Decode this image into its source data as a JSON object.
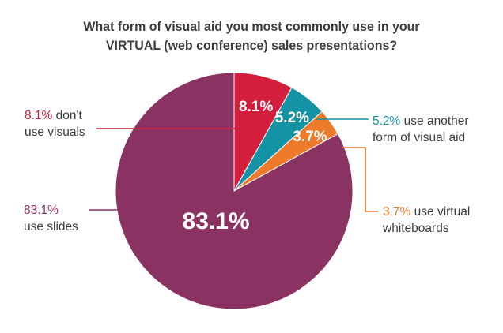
{
  "chart_data": {
    "type": "pie",
    "title": "What form of visual aid you most commonly use in your VIRTUAL (web conference) sales presentations?",
    "title_lines": [
      "What form of visual aid you most commonly use in your",
      "VIRTUAL (web conference) sales presentations?"
    ],
    "slices": [
      {
        "value": 83.1,
        "inner_label": "83.1%",
        "pct_text": "83.1%",
        "label_line1": "",
        "label_line2": "use slides",
        "color": "#8a3363"
      },
      {
        "value": 8.1,
        "inner_label": "8.1%",
        "pct_text": "8.1%",
        "label_line1": "don't",
        "label_line2": "use visuals",
        "color": "#d41e3d"
      },
      {
        "value": 5.2,
        "inner_label": "5.2%",
        "pct_text": "5.2%",
        "label_line1": "use another",
        "label_line2": "form of visual aid",
        "color": "#1493a7"
      },
      {
        "value": 3.7,
        "inner_label": "3.7%",
        "pct_text": "3.7%",
        "label_line1": "use virtual",
        "label_line2": "whiteboards",
        "color": "#ee7a2b"
      }
    ]
  }
}
